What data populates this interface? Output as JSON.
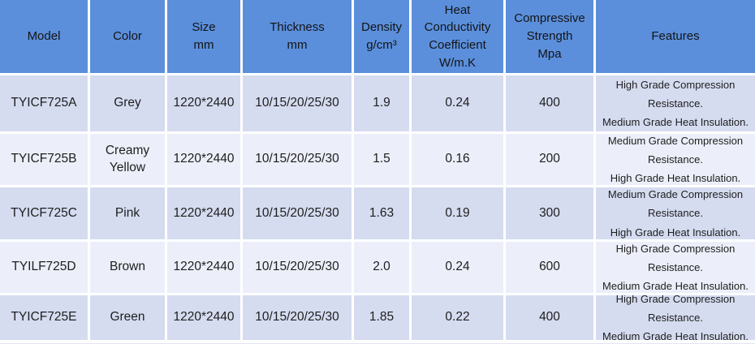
{
  "colors": {
    "header_bg": "#5b8fdc",
    "row_odd_bg": "#d5dcf0",
    "row_even_bg": "#eceff9",
    "grid_line": "#ffffff",
    "text": "#1e1e1e"
  },
  "table": {
    "columns": [
      {
        "label": "Model"
      },
      {
        "label": "Color"
      },
      {
        "label": "Size\nmm"
      },
      {
        "label": "Thickness\nmm"
      },
      {
        "label": "Density\ng/cm³"
      },
      {
        "label": "Heat\nConductivity\nCoefficient\nW/m.K"
      },
      {
        "label": "Compressive\nStrength\nMpa"
      },
      {
        "label": "Features"
      }
    ],
    "rows": [
      {
        "model": "TYICF725A",
        "color": "Grey",
        "size": "1220*2440",
        "thickness": "10/15/20/25/30",
        "density": "1.9",
        "heat": "0.24",
        "strength": "400",
        "features": "High Grade Compression Resistance.\nMedium Grade Heat Insulation."
      },
      {
        "model": "TYICF725B",
        "color": "Creamy Yellow",
        "size": "1220*2440",
        "thickness": "10/15/20/25/30",
        "density": "1.5",
        "heat": "0.16",
        "strength": "200",
        "features": "Medium Grade Compression Resistance.\nHigh Grade Heat Insulation."
      },
      {
        "model": "TYICF725C",
        "color": "Pink",
        "size": "1220*2440",
        "thickness": "10/15/20/25/30",
        "density": "1.63",
        "heat": "0.19",
        "strength": "300",
        "features": "Medium Grade Compression Resistance.\nHigh Grade Heat Insulation."
      },
      {
        "model": "TYILF725D",
        "color": "Brown",
        "size": "1220*2440",
        "thickness": "10/15/20/25/30",
        "density": "2.0",
        "heat": "0.24",
        "strength": "600",
        "features": "High Grade Compression Resistance.\nMedium Grade Heat Insulation."
      },
      {
        "model": "TYICF725E",
        "color": "Green",
        "size": "1220*2440",
        "thickness": "10/15/20/25/30",
        "density": "1.85",
        "heat": "0.22",
        "strength": "400",
        "features": "High Grade Compression Resistance.\nMedium Grade Heat Insulation."
      }
    ]
  }
}
